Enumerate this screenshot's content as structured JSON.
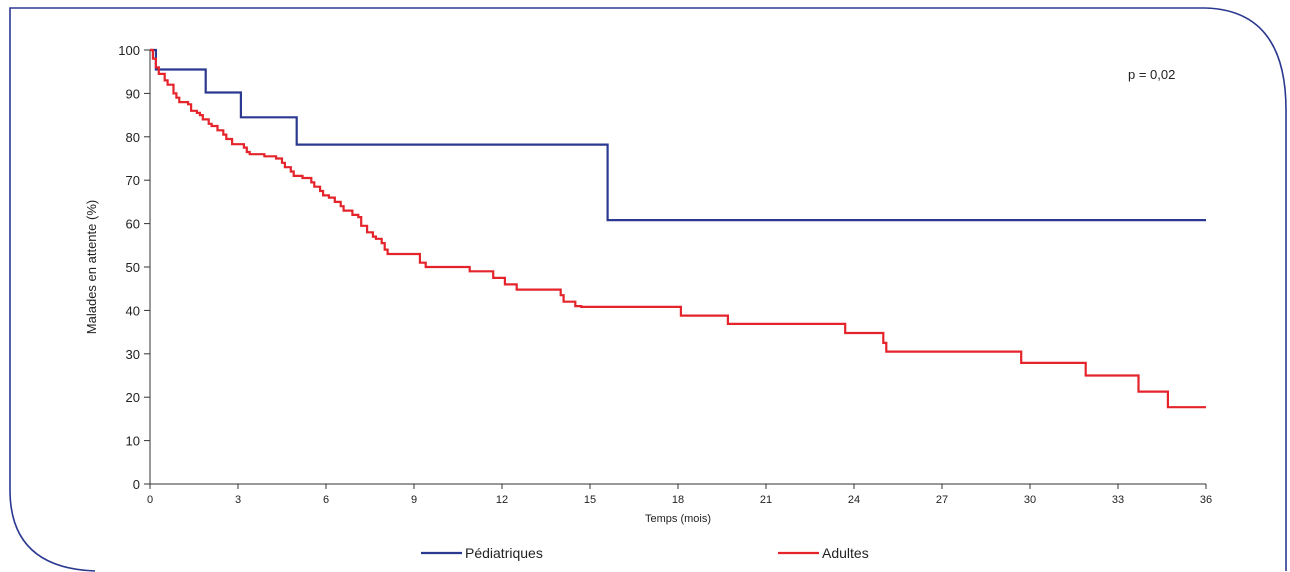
{
  "chart_data": {
    "type": "line",
    "step": true,
    "xlabel": "Temps (mois)",
    "ylabel": "Malades en attente (%)",
    "xlim": [
      0,
      36
    ],
    "ylim": [
      0,
      100
    ],
    "xticks": [
      0,
      3,
      6,
      9,
      12,
      15,
      18,
      21,
      24,
      27,
      30,
      33,
      36
    ],
    "yticks": [
      0,
      10,
      20,
      30,
      40,
      50,
      60,
      70,
      80,
      90,
      100
    ],
    "grid": false,
    "legend_position": "bottom",
    "annotation": "p = 0,02",
    "series": [
      {
        "name": "Pédiatriques",
        "color": "#2b3990",
        "points": [
          [
            0,
            100
          ],
          [
            0.2,
            95.5
          ],
          [
            1.9,
            90.2
          ],
          [
            3.1,
            84.5
          ],
          [
            5.0,
            78.2
          ],
          [
            15.6,
            60.8
          ],
          [
            36,
            60.8
          ]
        ]
      },
      {
        "name": "Adultes",
        "color": "#e4232b",
        "points": [
          [
            0,
            100
          ],
          [
            0.1,
            98
          ],
          [
            0.2,
            96
          ],
          [
            0.3,
            94.5
          ],
          [
            0.5,
            93
          ],
          [
            0.6,
            92
          ],
          [
            0.8,
            90
          ],
          [
            0.9,
            89
          ],
          [
            1.0,
            88
          ],
          [
            1.3,
            87.5
          ],
          [
            1.4,
            86
          ],
          [
            1.6,
            85.5
          ],
          [
            1.7,
            85
          ],
          [
            1.8,
            84
          ],
          [
            2.0,
            83
          ],
          [
            2.1,
            82.5
          ],
          [
            2.3,
            81.5
          ],
          [
            2.5,
            80.5
          ],
          [
            2.6,
            79.5
          ],
          [
            2.8,
            78.3
          ],
          [
            3.2,
            77.5
          ],
          [
            3.3,
            76.5
          ],
          [
            3.4,
            76
          ],
          [
            3.9,
            75.5
          ],
          [
            4.3,
            75
          ],
          [
            4.5,
            74
          ],
          [
            4.6,
            73
          ],
          [
            4.8,
            72
          ],
          [
            4.9,
            71
          ],
          [
            5.2,
            70.5
          ],
          [
            5.5,
            69.5
          ],
          [
            5.6,
            68.5
          ],
          [
            5.8,
            67.5
          ],
          [
            5.9,
            66.5
          ],
          [
            6.1,
            66
          ],
          [
            6.3,
            65
          ],
          [
            6.5,
            64
          ],
          [
            6.6,
            63
          ],
          [
            6.9,
            62
          ],
          [
            7.1,
            61.5
          ],
          [
            7.2,
            59.5
          ],
          [
            7.4,
            58
          ],
          [
            7.6,
            57
          ],
          [
            7.7,
            56.5
          ],
          [
            7.9,
            55.5
          ],
          [
            8.0,
            54
          ],
          [
            8.1,
            53
          ],
          [
            9.2,
            51
          ],
          [
            9.4,
            50
          ],
          [
            10.9,
            49
          ],
          [
            11.7,
            47.5
          ],
          [
            12.1,
            46
          ],
          [
            12.5,
            44.8
          ],
          [
            14.0,
            43.5
          ],
          [
            14.1,
            42
          ],
          [
            14.5,
            41
          ],
          [
            14.7,
            40.8
          ],
          [
            18.1,
            38.8
          ],
          [
            19.7,
            36.9
          ],
          [
            23.7,
            34.8
          ],
          [
            25.0,
            32.5
          ],
          [
            25.1,
            30.5
          ],
          [
            29.7,
            27.9
          ],
          [
            31.9,
            25
          ],
          [
            33.7,
            21.3
          ],
          [
            34.7,
            17.7
          ],
          [
            36,
            17.7
          ]
        ]
      }
    ]
  }
}
